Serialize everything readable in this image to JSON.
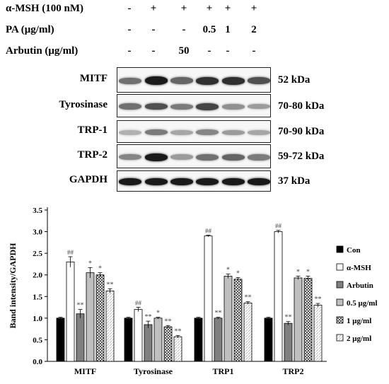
{
  "conditions": {
    "rows": [
      {
        "label": "α-MSH (100 nM)",
        "values": [
          "-",
          "+",
          "+",
          "+",
          "+",
          "+"
        ]
      },
      {
        "label": "PA (μg/ml)",
        "values": [
          "-",
          "-",
          "-",
          "0.5",
          "1",
          "2"
        ]
      },
      {
        "label": "Arbutin (μg/ml)",
        "values": [
          "-",
          "-",
          "50",
          "-",
          "-",
          "-"
        ]
      }
    ]
  },
  "blots": [
    {
      "name": "MITF",
      "kda": "52 kDa",
      "intensity": [
        0.55,
        0.95,
        0.6,
        0.85,
        0.85,
        0.7
      ]
    },
    {
      "name": "Tyrosinase",
      "kda": "70-80 kDa",
      "intensity": [
        0.55,
        0.7,
        0.5,
        0.75,
        0.4,
        0.35
      ]
    },
    {
      "name": "TRP-1",
      "kda": "70-90 kDa",
      "intensity": [
        0.25,
        0.5,
        0.3,
        0.45,
        0.35,
        0.3
      ]
    },
    {
      "name": "TRP-2",
      "kda": "59-72 kDa",
      "intensity": [
        0.45,
        0.95,
        0.35,
        0.55,
        0.6,
        0.5
      ]
    },
    {
      "name": "GAPDH",
      "kda": "37 kDa",
      "intensity": [
        0.95,
        0.95,
        0.95,
        0.95,
        0.95,
        0.95
      ]
    }
  ],
  "chart_data": {
    "type": "bar",
    "ylabel": "Band intensity/GAPDH",
    "ylim": [
      0,
      3.5
    ],
    "yticks": [
      "0.0",
      "0.5",
      "1.0",
      "1.5",
      "2.0",
      "2.5",
      "3.0",
      "3.5"
    ],
    "categories": [
      "MITF",
      "Tyrosinase",
      "TRP1",
      "TRP2"
    ],
    "series": [
      {
        "name": "Con",
        "color": "#000000",
        "pattern": "solid-black",
        "values": [
          1.0,
          1.0,
          1.0,
          1.0
        ],
        "errors": [
          0.02,
          0.02,
          0.02,
          0.02
        ],
        "marks": [
          "",
          "",
          "",
          ""
        ]
      },
      {
        "name": "α-MSH",
        "color": "#ffffff",
        "pattern": "white",
        "values": [
          2.3,
          1.2,
          2.9,
          3.0
        ],
        "errors": [
          0.12,
          0.05,
          0.02,
          0.03
        ],
        "marks": [
          "##",
          "##",
          "##",
          "##"
        ]
      },
      {
        "name": "Arbutin",
        "color": "#7f7f7f",
        "pattern": "dark-gray",
        "values": [
          1.1,
          0.85,
          1.0,
          0.88
        ],
        "errors": [
          0.1,
          0.08,
          0.02,
          0.04
        ],
        "marks": [
          "**",
          "**",
          "**",
          "**"
        ]
      },
      {
        "name": "0.5 μg/ml",
        "color": "#bfbfbf",
        "pattern": "light-gray",
        "values": [
          2.05,
          1.0,
          1.97,
          1.93
        ],
        "errors": [
          0.12,
          0.02,
          0.05,
          0.04
        ],
        "marks": [
          "*",
          "*",
          "*",
          "*"
        ]
      },
      {
        "name": "1 μg/ml",
        "color": "#d9d9d9",
        "pattern": "crosshatch",
        "values": [
          2.0,
          0.8,
          1.9,
          1.92
        ],
        "errors": [
          0.05,
          0.03,
          0.04,
          0.05
        ],
        "marks": [
          "*",
          "**",
          "*",
          "*"
        ]
      },
      {
        "name": "2 μg/ml",
        "color": "#eeeeee",
        "pattern": "dotted-hatch",
        "values": [
          1.63,
          0.57,
          1.35,
          1.3
        ],
        "errors": [
          0.05,
          0.03,
          0.03,
          0.04
        ],
        "marks": [
          "**",
          "**",
          "**",
          "**"
        ]
      }
    ],
    "legend_position": "right"
  }
}
